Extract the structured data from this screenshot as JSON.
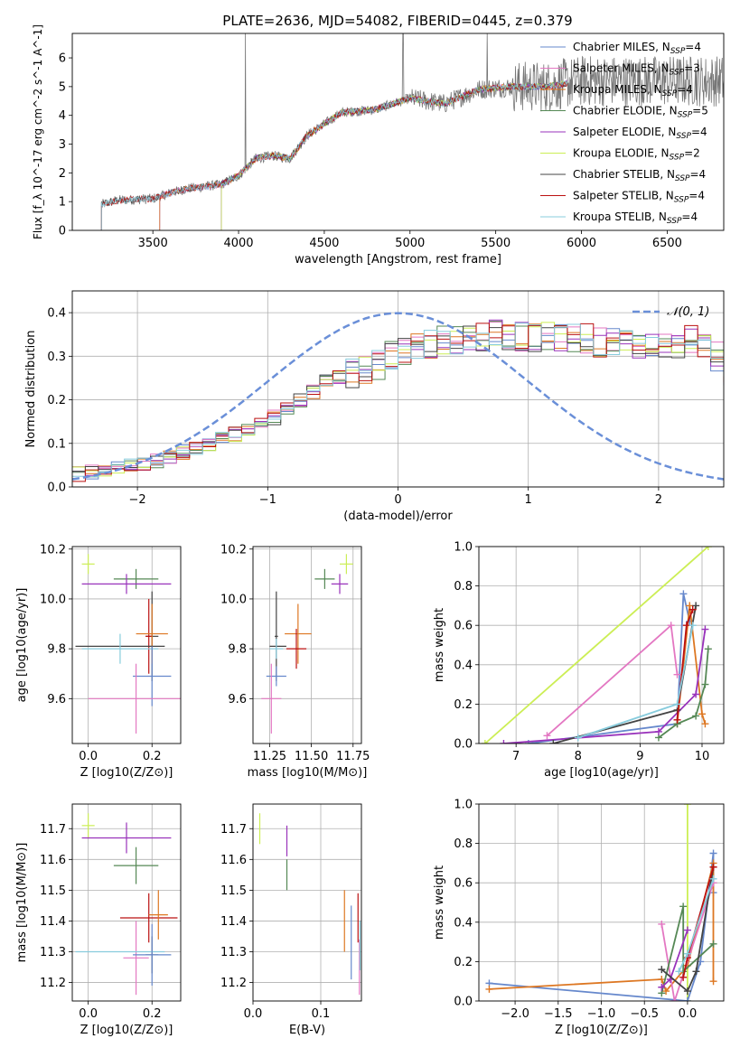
{
  "figure": {
    "title": "PLATE=2636, MJD=54082, FIBERID=0445, z=0.379"
  },
  "colors": {
    "chabrier_miles": "#6688cc",
    "salpeter_miles": "#e377c2",
    "kroupa_miles": "#dd7722",
    "chabrier_elodie": "#558855",
    "salpeter_elodie": "#9933bb",
    "kroupa_elodie": "#ccee55",
    "chabrier_stelib": "#444444",
    "salpeter_stelib": "#bb1111",
    "kroupa_stelib": "#88ccdd",
    "gaussian": "#6a8fd8"
  },
  "chart_data": [
    {
      "id": "spectrum",
      "type": "line",
      "xlabel": "wavelength [Angstrom, rest frame]",
      "ylabel": "Flux [f_λ 10^-17 erg cm^-2 s^-1 A^-1]",
      "xlim": [
        3030,
        6830
      ],
      "ylim": [
        0,
        6.85
      ],
      "xticks": [
        3500,
        4000,
        4500,
        5000,
        5500,
        6000,
        6500
      ],
      "yticks": [
        0,
        1,
        2,
        3,
        4,
        5,
        6
      ],
      "grid": false,
      "legend_position": "top-right",
      "continuum_anchors": [
        [
          3200,
          0.9
        ],
        [
          3300,
          1.05
        ],
        [
          3500,
          1.1
        ],
        [
          3600,
          1.3
        ],
        [
          3700,
          1.45
        ],
        [
          3900,
          1.6
        ],
        [
          4000,
          1.9
        ],
        [
          4100,
          2.5
        ],
        [
          4200,
          2.6
        ],
        [
          4300,
          2.5
        ],
        [
          4400,
          3.3
        ],
        [
          4500,
          3.7
        ],
        [
          4600,
          4.1
        ],
        [
          4800,
          4.2
        ],
        [
          5000,
          4.6
        ],
        [
          5200,
          4.4
        ],
        [
          5400,
          4.9
        ],
        [
          5600,
          5.0
        ],
        [
          5800,
          5.0
        ],
        [
          6000,
          5.2
        ],
        [
          6100,
          5.2
        ]
      ],
      "data_start_x": 3200,
      "data_end_x": 6830,
      "model_end_x": 5920,
      "series": [
        {
          "name": "Chabrier MILES, N_SSP=4",
          "label_main": "Chabrier MILES, N",
          "label_sub": "SSP",
          "label_tail": "=4",
          "color_key": "chabrier_miles",
          "start_x": 3540
        },
        {
          "name": "Salpeter MILES, N_SSP=3",
          "label_main": "Salpeter MILES, N",
          "label_sub": "SSP",
          "label_tail": "=3",
          "color_key": "salpeter_miles",
          "start_x": 3540
        },
        {
          "name": "Kroupa MILES, N_SSP=4",
          "label_main": "Kroupa MILES, N",
          "label_sub": "SSP",
          "label_tail": "=4",
          "color_key": "kroupa_miles",
          "start_x": 3540
        },
        {
          "name": "Chabrier ELODIE, N_SSP=5",
          "label_main": "Chabrier ELODIE, N",
          "label_sub": "SSP",
          "label_tail": "=5",
          "color_key": "chabrier_elodie",
          "start_x": 3900
        },
        {
          "name": "Salpeter ELODIE, N_SSP=4",
          "label_main": "Salpeter ELODIE, N",
          "label_sub": "SSP",
          "label_tail": "=4",
          "color_key": "salpeter_elodie",
          "start_x": 3900
        },
        {
          "name": "Kroupa ELODIE, N_SSP=2",
          "label_main": "Kroupa ELODIE, N",
          "label_sub": "SSP",
          "label_tail": "=2",
          "color_key": "kroupa_elodie",
          "start_x": 3900
        },
        {
          "name": "Chabrier STELIB, N_SSP=4",
          "label_main": "Chabrier STELIB, N",
          "label_sub": "SSP",
          "label_tail": "=4",
          "color_key": "chabrier_stelib",
          "start_x": 3200
        },
        {
          "name": "Salpeter STELIB, N_SSP=4",
          "label_main": "Salpeter STELIB, N",
          "label_sub": "SSP",
          "label_tail": "=4",
          "color_key": "salpeter_stelib",
          "start_x": 3200
        },
        {
          "name": "Kroupa STELIB, N_SSP=4",
          "label_main": "Kroupa STELIB, N",
          "label_sub": "SSP",
          "label_tail": "=4",
          "color_key": "kroupa_stelib",
          "start_x": 3200
        }
      ]
    },
    {
      "id": "residuals",
      "type": "line",
      "xlabel": "(data-model)/error",
      "ylabel": "Normed distribution",
      "xlim": [
        -2.5,
        2.5
      ],
      "ylim": [
        0,
        0.45
      ],
      "xticks": [
        -2,
        -1,
        0,
        1,
        2
      ],
      "yticks": [
        0.0,
        0.1,
        0.2,
        0.3,
        0.4
      ],
      "grid": true,
      "legend_position": "top-right",
      "gaussian_label": "𝒩(0, 1)",
      "bin_width": 0.1,
      "bin_start": -2.5,
      "profile": [
        0.03,
        0.035,
        0.04,
        0.045,
        0.05,
        0.055,
        0.06,
        0.07,
        0.08,
        0.09,
        0.1,
        0.11,
        0.12,
        0.13,
        0.14,
        0.16,
        0.18,
        0.2,
        0.22,
        0.24,
        0.25,
        0.26,
        0.27,
        0.28,
        0.3,
        0.31,
        0.32,
        0.33,
        0.335,
        0.34,
        0.34,
        0.345,
        0.35,
        0.35,
        0.345,
        0.34,
        0.35,
        0.345,
        0.34,
        0.34,
        0.33,
        0.33,
        0.34,
        0.33,
        0.33,
        0.32,
        0.33,
        0.34,
        0.33,
        0.3,
        0.25,
        0.26,
        0.25,
        0.27,
        0.26,
        0.25,
        0.23,
        0.22,
        0.2,
        0.2,
        0.19,
        0.18,
        0.17,
        0.16,
        0.15,
        0.14,
        0.13,
        0.12,
        0.11,
        0.1,
        0.1,
        0.09,
        0.08,
        0.07,
        0.065,
        0.06,
        0.055,
        0.05,
        0.045,
        0.04
      ]
    },
    {
      "id": "z-vs-age",
      "type": "scatter",
      "xlabel": "Z [log10(Z/Z⊙)]",
      "ylabel": "age [log10(age/yr)]",
      "xlim": [
        -0.05,
        0.29
      ],
      "ylim": [
        9.42,
        10.21
      ],
      "xticks": [
        0.0,
        0.2
      ],
      "yticks": [
        9.6,
        9.8,
        10.0,
        10.2
      ],
      "grid": true,
      "points": [
        {
          "color_key": "kroupa_elodie",
          "x": 0.0,
          "xerr": 0.02,
          "y": 10.14,
          "yerr": 0.04
        },
        {
          "color_key": "chabrier_elodie",
          "x": 0.15,
          "xerr": 0.07,
          "y": 10.08,
          "yerr": 0.04
        },
        {
          "color_key": "salpeter_elodie",
          "x": 0.12,
          "xerr": 0.14,
          "y": 10.06,
          "yerr": 0.04
        },
        {
          "color_key": "chabrier_stelib",
          "x": 0.2,
          "xerr": 0.02,
          "y": 9.85,
          "yerr": 0.18
        },
        {
          "color_key": "salpeter_stelib",
          "x": 0.19,
          "xerr": 0.01,
          "y": 9.85,
          "yerr": 0.15
        },
        {
          "color_key": "kroupa_miles",
          "x": 0.2,
          "xerr": 0.05,
          "y": 9.86,
          "yerr": 0.12
        },
        {
          "color_key": "chabrier_stelib",
          "x": 0.1,
          "xerr": 0.14,
          "y": 9.81,
          "yerr": 0.0
        },
        {
          "color_key": "kroupa_stelib",
          "x": 0.1,
          "xerr": 0.12,
          "y": 9.8,
          "yerr": 0.06
        },
        {
          "color_key": "chabrier_miles",
          "x": 0.2,
          "xerr": 0.06,
          "y": 9.69,
          "yerr": 0.12
        },
        {
          "color_key": "salpeter_miles",
          "x": 0.15,
          "xerr": 0.15,
          "y": 9.6,
          "yerr": 0.14
        }
      ]
    },
    {
      "id": "mass-vs-age",
      "type": "scatter",
      "xlabel": "mass [log10(M/M⊙)]",
      "ylabel": "",
      "xlim": [
        11.15,
        11.8
      ],
      "ylim": [
        9.42,
        10.21
      ],
      "xticks": [
        11.25,
        11.5,
        11.75
      ],
      "yticks": [
        9.6,
        9.8,
        10.0,
        10.2
      ],
      "grid": true,
      "points": [
        {
          "color_key": "kroupa_elodie",
          "x": 11.71,
          "xerr": 0.04,
          "y": 10.14,
          "yerr": 0.04
        },
        {
          "color_key": "chabrier_elodie",
          "x": 11.58,
          "xerr": 0.06,
          "y": 10.08,
          "yerr": 0.04
        },
        {
          "color_key": "salpeter_elodie",
          "x": 11.67,
          "xerr": 0.05,
          "y": 10.06,
          "yerr": 0.04
        },
        {
          "color_key": "chabrier_stelib",
          "x": 11.29,
          "xerr": 0.01,
          "y": 9.85,
          "yerr": 0.18
        },
        {
          "color_key": "kroupa_miles",
          "x": 11.42,
          "xerr": 0.08,
          "y": 9.86,
          "yerr": 0.12
        },
        {
          "color_key": "salpeter_stelib",
          "x": 11.41,
          "xerr": 0.06,
          "y": 9.8,
          "yerr": 0.08
        },
        {
          "color_key": "chabrier_stelib",
          "x": 11.3,
          "xerr": 0.05,
          "y": 9.81,
          "yerr": 0.0
        },
        {
          "color_key": "kroupa_stelib",
          "x": 11.29,
          "xerr": 0.04,
          "y": 9.8,
          "yerr": 0.04
        },
        {
          "color_key": "chabrier_miles",
          "x": 11.29,
          "xerr": 0.06,
          "y": 9.69,
          "yerr": 0.04
        },
        {
          "color_key": "salpeter_miles",
          "x": 11.26,
          "xerr": 0.06,
          "y": 9.6,
          "yerr": 0.14
        }
      ]
    },
    {
      "id": "age-vs-massweight",
      "type": "line",
      "xlabel": "age [log10(age/yr)]",
      "ylabel": "mass weight",
      "xlim": [
        6.4,
        10.35
      ],
      "ylim": [
        0,
        1.0
      ],
      "xticks": [
        7,
        8,
        9,
        10
      ],
      "yticks": [
        0.0,
        0.2,
        0.4,
        0.6,
        0.8,
        1.0
      ],
      "grid": true,
      "series": [
        {
          "color_key": "kroupa_elodie",
          "x": [
            6.5,
            10.1
          ],
          "y": [
            0.0,
            1.0
          ]
        },
        {
          "color_key": "chabrier_miles",
          "x": [
            7.2,
            9.6,
            9.7,
            9.8
          ],
          "y": [
            0.0,
            0.1,
            0.76,
            0.62
          ]
        },
        {
          "color_key": "salpeter_miles",
          "x": [
            7.5,
            9.5,
            9.6
          ],
          "y": [
            0.04,
            0.6,
            0.35
          ]
        },
        {
          "color_key": "kroupa_miles",
          "x": [
            9.6,
            9.8,
            10.0,
            10.05
          ],
          "y": [
            0.1,
            0.7,
            0.15,
            0.1
          ]
        },
        {
          "color_key": "chabrier_elodie",
          "x": [
            9.3,
            9.6,
            9.9,
            10.05,
            10.1
          ],
          "y": [
            0.03,
            0.1,
            0.14,
            0.3,
            0.48
          ]
        },
        {
          "color_key": "salpeter_elodie",
          "x": [
            6.8,
            9.3,
            9.9,
            10.05
          ],
          "y": [
            0.0,
            0.06,
            0.25,
            0.58
          ]
        },
        {
          "color_key": "chabrier_stelib",
          "x": [
            7.6,
            9.6,
            9.9
          ],
          "y": [
            0.0,
            0.17,
            0.7
          ]
        },
        {
          "color_key": "salpeter_stelib",
          "x": [
            9.6,
            9.75,
            9.85
          ],
          "y": [
            0.12,
            0.6,
            0.68
          ]
        },
        {
          "color_key": "kroupa_stelib",
          "x": [
            8.0,
            9.6,
            9.85
          ],
          "y": [
            0.03,
            0.2,
            0.6
          ]
        }
      ]
    },
    {
      "id": "z-vs-mass",
      "type": "scatter",
      "xlabel": "Z [log10(Z/Z⊙)]",
      "ylabel": "mass [log10(M/M⊙)]",
      "xlim": [
        -0.05,
        0.29
      ],
      "ylim": [
        11.14,
        11.78
      ],
      "xticks": [
        0.0,
        0.2
      ],
      "yticks": [
        11.2,
        11.3,
        11.4,
        11.5,
        11.6,
        11.7
      ],
      "grid": true,
      "points": [
        {
          "color_key": "kroupa_elodie",
          "x": 0.0,
          "xerr": 0.02,
          "y": 11.71,
          "yerr": 0.04
        },
        {
          "color_key": "salpeter_elodie",
          "x": 0.12,
          "xerr": 0.14,
          "y": 11.67,
          "yerr": 0.05
        },
        {
          "color_key": "chabrier_elodie",
          "x": 0.15,
          "xerr": 0.07,
          "y": 11.58,
          "yerr": 0.06
        },
        {
          "color_key": "salpeter_stelib",
          "x": 0.19,
          "xerr": 0.09,
          "y": 11.41,
          "yerr": 0.08
        },
        {
          "color_key": "kroupa_miles",
          "x": 0.22,
          "xerr": 0.03,
          "y": 11.42,
          "yerr": 0.08
        },
        {
          "color_key": "salpeter_miles",
          "x": 0.15,
          "xerr": 0.04,
          "y": 11.28,
          "yerr": 0.12
        },
        {
          "color_key": "chabrier_stelib",
          "x": 0.2,
          "xerr": 0.02,
          "y": 11.29,
          "yerr": 0.06
        },
        {
          "color_key": "kroupa_stelib",
          "x": 0.1,
          "xerr": 0.14,
          "y": 11.3,
          "yerr": 0.0
        },
        {
          "color_key": "chabrier_miles",
          "x": 0.2,
          "xerr": 0.06,
          "y": 11.29,
          "yerr": 0.1
        }
      ]
    },
    {
      "id": "ebv-vs-mass",
      "type": "scatter",
      "xlabel": "E(B-V)",
      "ylabel": "",
      "xlim": [
        0.0,
        0.16
      ],
      "ylim": [
        11.14,
        11.78
      ],
      "xticks": [
        0.0,
        0.1
      ],
      "yticks": [
        11.2,
        11.3,
        11.4,
        11.5,
        11.6,
        11.7
      ],
      "grid": true,
      "points": [
        {
          "color_key": "kroupa_elodie",
          "x": 0.01,
          "xerr": 0.0,
          "y": 11.7,
          "yerr": 0.05
        },
        {
          "color_key": "salpeter_elodie",
          "x": 0.05,
          "xerr": 0.0,
          "y": 11.66,
          "yerr": 0.05
        },
        {
          "color_key": "chabrier_elodie",
          "x": 0.05,
          "xerr": 0.0,
          "y": 11.55,
          "yerr": 0.05
        },
        {
          "color_key": "kroupa_miles",
          "x": 0.135,
          "xerr": 0.0,
          "y": 11.4,
          "yerr": 0.1
        },
        {
          "color_key": "chabrier_miles",
          "x": 0.145,
          "xerr": 0.0,
          "y": 11.33,
          "yerr": 0.12
        },
        {
          "color_key": "salpeter_stelib",
          "x": 0.155,
          "xerr": 0.0,
          "y": 11.41,
          "yerr": 0.08
        },
        {
          "color_key": "salpeter_miles",
          "x": 0.157,
          "xerr": 0.0,
          "y": 11.25,
          "yerr": 0.09
        },
        {
          "color_key": "kroupa_stelib",
          "x": 0.158,
          "xerr": 0.0,
          "y": 11.32,
          "yerr": 0.08
        }
      ]
    },
    {
      "id": "z-vs-massweight",
      "type": "line",
      "xlabel": "Z [log10(Z/Z⊙)]",
      "ylabel": "mass weight",
      "xlim": [
        -2.42,
        0.42
      ],
      "ylim": [
        0,
        1.0
      ],
      "xticks": [
        -2.0,
        -1.5,
        -1.0,
        -0.5,
        0.0
      ],
      "yticks": [
        0.0,
        0.2,
        0.4,
        0.6,
        0.8,
        1.0
      ],
      "grid": true,
      "series": [
        {
          "color_key": "kroupa_elodie",
          "x": [
            0.0,
            0.0
          ],
          "y": [
            0.0,
            1.0
          ]
        },
        {
          "color_key": "chabrier_miles",
          "x": [
            -2.3,
            0.0,
            0.15,
            0.3,
            0.3
          ],
          "y": [
            0.09,
            0.0,
            0.2,
            0.75,
            0.55
          ]
        },
        {
          "color_key": "kroupa_miles",
          "x": [
            -2.3,
            -0.3,
            -0.25,
            0.0,
            0.3,
            0.3
          ],
          "y": [
            0.06,
            0.11,
            0.05,
            0.18,
            0.7,
            0.1
          ]
        },
        {
          "color_key": "salpeter_miles",
          "x": [
            -0.3,
            -0.15,
            0.3
          ],
          "y": [
            0.39,
            0.0,
            0.6
          ]
        },
        {
          "color_key": "chabrier_elodie",
          "x": [
            -0.3,
            -0.05,
            -0.05,
            0.3
          ],
          "y": [
            0.04,
            0.48,
            0.15,
            0.29
          ]
        },
        {
          "color_key": "salpeter_elodie",
          "x": [
            -0.3,
            -0.2,
            0.0
          ],
          "y": [
            0.07,
            0.11,
            0.36
          ]
        },
        {
          "color_key": "chabrier_stelib",
          "x": [
            -0.3,
            0.0,
            0.1,
            0.3
          ],
          "y": [
            0.16,
            0.05,
            0.15,
            0.68
          ]
        },
        {
          "color_key": "salpeter_stelib",
          "x": [
            -0.05,
            0.0,
            0.3
          ],
          "y": [
            0.12,
            0.22,
            0.68
          ]
        },
        {
          "color_key": "kroupa_stelib",
          "x": [
            -0.1,
            0.0,
            0.3
          ],
          "y": [
            0.15,
            0.24,
            0.62
          ]
        }
      ]
    }
  ]
}
